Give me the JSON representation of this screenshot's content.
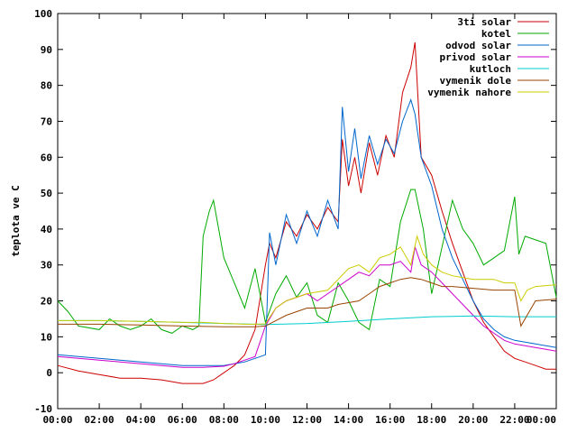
{
  "chart_data": {
    "type": "line",
    "title": "",
    "xlabel": "",
    "ylabel": "teplota ve C",
    "xlim": [
      0,
      24
    ],
    "ylim": [
      -10,
      100
    ],
    "x_ticks": [
      "00:00",
      "02:00",
      "04:00",
      "06:00",
      "08:00",
      "10:00",
      "12:00",
      "14:00",
      "16:00",
      "18:00",
      "20:00",
      "22:00",
      "00:00"
    ],
    "y_ticks": [
      -10,
      0,
      10,
      20,
      30,
      40,
      50,
      60,
      70,
      80,
      90,
      100
    ],
    "grid": false,
    "legend_position": "top-right",
    "series": [
      {
        "name": "3ti solar",
        "color": "#cc0000",
        "x": [
          0,
          1,
          2,
          3,
          4,
          5,
          6,
          6.5,
          7,
          7.5,
          8,
          8.5,
          9,
          9.5,
          10,
          10.2,
          10.5,
          11,
          11.5,
          12,
          12.5,
          13,
          13.5,
          13.7,
          14,
          14.3,
          14.6,
          15,
          15.4,
          15.8,
          16.2,
          16.6,
          17,
          17.2,
          17.5,
          18,
          18.5,
          19,
          19.5,
          20,
          20.5,
          21,
          21.5,
          22,
          22.5,
          23,
          23.5,
          24
        ],
        "y": [
          2,
          0.5,
          -0.5,
          -1.5,
          -1.5,
          -2,
          -3,
          -3,
          -3,
          -2,
          0,
          2,
          5,
          12,
          30,
          36,
          32,
          42,
          38,
          44,
          40,
          46,
          42,
          65,
          52,
          60,
          50,
          64,
          55,
          66,
          60,
          78,
          85,
          92,
          60,
          55,
          45,
          36,
          28,
          20,
          14,
          10,
          6,
          4,
          3,
          2,
          1,
          1
        ]
      },
      {
        "name": "kotel",
        "color": "#00aa00",
        "x": [
          0,
          0.5,
          1,
          2,
          2.5,
          3,
          3.5,
          4,
          4.5,
          5,
          5.5,
          6,
          6.5,
          6.8,
          7,
          7.3,
          7.5,
          8,
          8.5,
          9,
          9.5,
          10,
          10.5,
          11,
          11.5,
          12,
          12.5,
          13,
          13.5,
          14,
          14.5,
          15,
          15.5,
          16,
          16.5,
          17,
          17.2,
          17.6,
          18,
          18.5,
          19,
          19.5,
          20,
          20.5,
          21,
          21.5,
          22,
          22.2,
          22.5,
          23,
          23.5,
          24
        ],
        "y": [
          20,
          17,
          13,
          12,
          15,
          13,
          12,
          13,
          15,
          12,
          11,
          13,
          12,
          13,
          38,
          45,
          48,
          32,
          25,
          18,
          29,
          14,
          22,
          27,
          21,
          25,
          16,
          14,
          25,
          20,
          14,
          12,
          26,
          24,
          42,
          51,
          51,
          40,
          22,
          35,
          48,
          40,
          36,
          30,
          32,
          34,
          49,
          33,
          38,
          37,
          36,
          21
        ]
      },
      {
        "name": "odvod solar",
        "color": "#0066cc",
        "x": [
          0,
          1,
          2,
          3,
          4,
          5,
          6,
          7,
          8,
          8.5,
          9,
          9.5,
          10,
          10.2,
          10.5,
          11,
          11.5,
          12,
          12.5,
          13,
          13.5,
          13.7,
          14,
          14.3,
          14.6,
          15,
          15.4,
          15.8,
          16.2,
          16.6,
          17,
          17.2,
          17.5,
          18,
          18.5,
          19,
          19.5,
          20,
          20.5,
          21,
          21.5,
          22,
          22.5,
          23,
          23.5,
          24
        ],
        "y": [
          5,
          4.5,
          4,
          3.5,
          3,
          2.5,
          2,
          2,
          2,
          2.5,
          3,
          4,
          5,
          39,
          30,
          44,
          36,
          45,
          38,
          48,
          40,
          74,
          56,
          68,
          54,
          66,
          58,
          65,
          61,
          70,
          76,
          72,
          60,
          52,
          40,
          32,
          26,
          20,
          15,
          12,
          10,
          9,
          8.5,
          8,
          7.5,
          7
        ]
      },
      {
        "name": "privod solar",
        "color": "#cc00cc",
        "x": [
          0,
          1,
          2,
          3,
          4,
          5,
          6,
          7,
          8,
          8.5,
          9,
          9.5,
          10,
          10.5,
          11,
          11.5,
          12,
          12.5,
          13,
          13.5,
          14,
          14.5,
          15,
          15.5,
          16,
          16.5,
          17,
          17.2,
          17.5,
          18,
          18.5,
          19,
          19.5,
          20,
          20.5,
          21,
          21.5,
          22,
          22.5,
          23,
          23.5,
          24
        ],
        "y": [
          4.5,
          4,
          3.5,
          3,
          2.5,
          2,
          1.5,
          1.5,
          1.8,
          2.5,
          3.5,
          4.5,
          13,
          18,
          20,
          21,
          22,
          20,
          22,
          24,
          26,
          28,
          27,
          30,
          30,
          31,
          28,
          35,
          30,
          28,
          25,
          22,
          19,
          16,
          13,
          11,
          9,
          8,
          7.5,
          7,
          6.5,
          6
        ]
      },
      {
        "name": "kutloch",
        "color": "#00cccc",
        "x": [
          0,
          2,
          4,
          6,
          8,
          10,
          12,
          14,
          16,
          18,
          20,
          22,
          24
        ],
        "y": [
          14.5,
          14.5,
          14.3,
          14,
          13.7,
          13.4,
          13.7,
          14.3,
          15,
          15.6,
          15.8,
          15.6,
          15.6
        ]
      },
      {
        "name": "vymenik dole",
        "color": "#994400",
        "x": [
          0,
          2,
          4,
          6,
          8,
          9.5,
          10,
          11,
          12,
          13,
          13.5,
          14,
          14.5,
          15,
          15.5,
          16,
          16.5,
          17,
          17.5,
          18,
          18.5,
          19,
          20,
          21,
          21.5,
          22,
          22.3,
          22.6,
          23,
          24
        ],
        "y": [
          13.5,
          13.5,
          13.3,
          13,
          12.8,
          12.8,
          13,
          16,
          18,
          18,
          19,
          19.5,
          20,
          22,
          24,
          25,
          26,
          26.5,
          26,
          25,
          24,
          24,
          23.5,
          23,
          23,
          23,
          13,
          16,
          20,
          20.5
        ]
      },
      {
        "name": "vymenik nahore",
        "color": "#cccc00",
        "x": [
          0,
          2,
          4,
          6,
          7,
          8,
          9,
          9.5,
          10,
          10.5,
          11,
          12,
          13,
          13.5,
          14,
          14.5,
          15,
          15.5,
          16,
          16.5,
          17,
          17.3,
          17.6,
          18,
          18.5,
          19,
          20,
          21,
          21.5,
          22,
          22.3,
          22.6,
          23,
          24
        ],
        "y": [
          14.5,
          14.5,
          14.3,
          14,
          14,
          13.7,
          13.5,
          13.5,
          13.6,
          18,
          20,
          22,
          23,
          26,
          29,
          30,
          28,
          32,
          33,
          35,
          30,
          38,
          33,
          30,
          28,
          27,
          26,
          26,
          25,
          25,
          20,
          23,
          24,
          24.5
        ]
      }
    ]
  }
}
